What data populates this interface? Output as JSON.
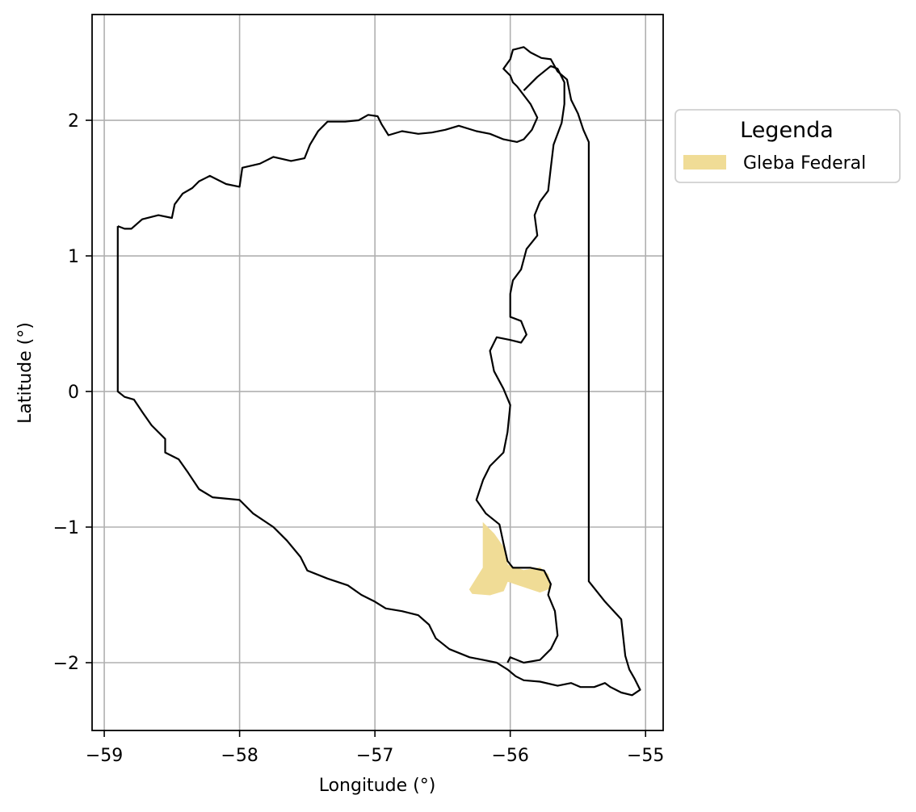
{
  "chart_data": {
    "type": "map",
    "xlabel": "Longitude (°)",
    "ylabel": "Latitude (°)",
    "xlim": [
      -59.09,
      -54.87
    ],
    "ylim": [
      -2.5,
      2.78
    ],
    "xticks": [
      -59,
      -58,
      -57,
      -56,
      -55
    ],
    "xtick_labels": [
      "−59",
      "−58",
      "−57",
      "−56",
      "−55"
    ],
    "yticks": [
      -2,
      -1,
      0,
      1,
      2
    ],
    "ytick_labels": [
      "−2",
      "−1",
      "0",
      "1",
      "2"
    ],
    "grid": true,
    "legend": {
      "title": "Legenda",
      "placement": "outside-upper-right",
      "entries": [
        {
          "label": "Gleba Federal",
          "color": "#f0dc96"
        }
      ]
    },
    "boundaries": [
      {
        "name": "",
        "color": "#000000",
        "coords": [
          [
            -58.9,
            1.22
          ],
          [
            -58.85,
            1.2
          ],
          [
            -58.8,
            1.2
          ],
          [
            -58.72,
            1.27
          ],
          [
            -58.6,
            1.3
          ],
          [
            -58.5,
            1.28
          ],
          [
            -58.48,
            1.38
          ],
          [
            -58.42,
            1.46
          ],
          [
            -58.35,
            1.5
          ],
          [
            -58.3,
            1.55
          ],
          [
            -58.22,
            1.59
          ],
          [
            -58.1,
            1.53
          ],
          [
            -58.0,
            1.51
          ],
          [
            -57.98,
            1.65
          ],
          [
            -57.85,
            1.68
          ],
          [
            -57.75,
            1.73
          ],
          [
            -57.62,
            1.7
          ],
          [
            -57.52,
            1.72
          ],
          [
            -57.48,
            1.82
          ],
          [
            -57.42,
            1.92
          ],
          [
            -57.35,
            1.99
          ],
          [
            -57.22,
            1.99
          ],
          [
            -57.12,
            2.0
          ],
          [
            -57.05,
            2.04
          ],
          [
            -56.98,
            2.03
          ],
          [
            -56.95,
            1.97
          ],
          [
            -56.9,
            1.89
          ],
          [
            -56.8,
            1.92
          ],
          [
            -56.68,
            1.9
          ],
          [
            -56.58,
            1.91
          ],
          [
            -56.48,
            1.93
          ],
          [
            -56.38,
            1.96
          ],
          [
            -56.25,
            1.92
          ],
          [
            -56.15,
            1.9
          ],
          [
            -56.05,
            1.86
          ],
          [
            -55.95,
            1.84
          ],
          [
            -55.9,
            1.86
          ],
          [
            -55.84,
            1.93
          ],
          [
            -55.8,
            2.02
          ],
          [
            -55.85,
            2.12
          ],
          [
            -55.95,
            2.25
          ],
          [
            -55.98,
            2.28
          ],
          [
            -56.0,
            2.33
          ],
          [
            -56.05,
            2.38
          ],
          [
            -56.0,
            2.45
          ],
          [
            -55.98,
            2.52
          ],
          [
            -55.9,
            2.54
          ],
          [
            -55.85,
            2.5
          ],
          [
            -55.77,
            2.46
          ],
          [
            -55.7,
            2.45
          ],
          [
            -55.65,
            2.36
          ],
          [
            -55.58,
            2.3
          ],
          [
            -55.55,
            2.15
          ],
          [
            -55.5,
            2.05
          ],
          [
            -55.46,
            1.93
          ],
          [
            -55.42,
            1.84
          ],
          [
            -55.42,
            1.72
          ],
          [
            -55.42,
            1.55
          ],
          [
            -55.42,
            0.5
          ],
          [
            -55.42,
            -0.5
          ],
          [
            -55.42,
            -1.4
          ],
          [
            -55.3,
            -1.55
          ],
          [
            -55.18,
            -1.68
          ],
          [
            -55.15,
            -1.95
          ],
          [
            -55.12,
            -2.05
          ],
          [
            -55.08,
            -2.12
          ],
          [
            -55.04,
            -2.2
          ],
          [
            -55.1,
            -2.24
          ],
          [
            -55.18,
            -2.22
          ],
          [
            -55.26,
            -2.18
          ],
          [
            -55.3,
            -2.15
          ],
          [
            -55.38,
            -2.18
          ],
          [
            -55.48,
            -2.18
          ],
          [
            -55.55,
            -2.15
          ],
          [
            -55.65,
            -2.17
          ],
          [
            -55.78,
            -2.14
          ],
          [
            -55.9,
            -2.13
          ],
          [
            -55.96,
            -2.1
          ],
          [
            -56.02,
            -2.05
          ],
          [
            -56.1,
            -2.0
          ],
          [
            -56.2,
            -1.98
          ],
          [
            -56.3,
            -1.96
          ],
          [
            -56.45,
            -1.9
          ],
          [
            -56.55,
            -1.82
          ],
          [
            -56.6,
            -1.72
          ],
          [
            -56.68,
            -1.65
          ],
          [
            -56.8,
            -1.62
          ],
          [
            -56.92,
            -1.6
          ],
          [
            -57.0,
            -1.55
          ],
          [
            -57.1,
            -1.5
          ],
          [
            -57.2,
            -1.43
          ],
          [
            -57.35,
            -1.38
          ],
          [
            -57.5,
            -1.32
          ],
          [
            -57.55,
            -1.22
          ],
          [
            -57.65,
            -1.1
          ],
          [
            -57.75,
            -1.0
          ],
          [
            -57.9,
            -0.9
          ],
          [
            -58.0,
            -0.8
          ],
          [
            -58.2,
            -0.78
          ],
          [
            -58.3,
            -0.72
          ],
          [
            -58.38,
            -0.6
          ],
          [
            -58.45,
            -0.5
          ],
          [
            -58.55,
            -0.45
          ],
          [
            -58.55,
            -0.35
          ],
          [
            -58.65,
            -0.25
          ],
          [
            -58.72,
            -0.15
          ],
          [
            -58.78,
            -0.06
          ],
          [
            -58.85,
            -0.04
          ],
          [
            -58.9,
            0.0
          ],
          [
            -58.9,
            1.22
          ]
        ]
      },
      {
        "name": "",
        "color": "#000000",
        "coords": [
          [
            -55.9,
            2.22
          ],
          [
            -55.8,
            2.32
          ],
          [
            -55.7,
            2.4
          ],
          [
            -55.65,
            2.38
          ],
          [
            -55.6,
            2.28
          ],
          [
            -55.6,
            2.12
          ],
          [
            -55.62,
            1.98
          ],
          [
            -55.68,
            1.82
          ],
          [
            -55.7,
            1.65
          ],
          [
            -55.72,
            1.48
          ],
          [
            -55.78,
            1.4
          ],
          [
            -55.82,
            1.3
          ],
          [
            -55.8,
            1.15
          ],
          [
            -55.88,
            1.05
          ],
          [
            -55.92,
            0.9
          ],
          [
            -55.98,
            0.82
          ],
          [
            -56.0,
            0.72
          ],
          [
            -56.0,
            0.55
          ],
          [
            -55.92,
            0.52
          ],
          [
            -55.88,
            0.42
          ],
          [
            -55.92,
            0.36
          ],
          [
            -56.0,
            0.38
          ],
          [
            -56.1,
            0.4
          ],
          [
            -56.15,
            0.3
          ],
          [
            -56.12,
            0.15
          ],
          [
            -56.05,
            0.02
          ],
          [
            -56.0,
            -0.1
          ],
          [
            -56.02,
            -0.3
          ],
          [
            -56.05,
            -0.45
          ],
          [
            -56.15,
            -0.55
          ],
          [
            -56.2,
            -0.65
          ],
          [
            -56.25,
            -0.8
          ],
          [
            -56.18,
            -0.9
          ],
          [
            -56.08,
            -0.98
          ],
          [
            -56.05,
            -1.12
          ],
          [
            -56.02,
            -1.25
          ],
          [
            -55.98,
            -1.3
          ],
          [
            -55.85,
            -1.3
          ],
          [
            -55.75,
            -1.32
          ],
          [
            -55.7,
            -1.42
          ],
          [
            -55.72,
            -1.5
          ],
          [
            -55.67,
            -1.62
          ],
          [
            -55.65,
            -1.8
          ],
          [
            -55.7,
            -1.9
          ],
          [
            -55.78,
            -1.98
          ],
          [
            -55.9,
            -2.0
          ],
          [
            -56.0,
            -1.96
          ],
          [
            -56.02,
            -2.0
          ]
        ]
      }
    ],
    "areas": [
      {
        "name": "Gleba Federal",
        "color": "#f0dc96",
        "coords": [
          [
            -56.2,
            -0.97
          ],
          [
            -56.12,
            -1.05
          ],
          [
            -56.05,
            -1.15
          ],
          [
            -56.02,
            -1.28
          ],
          [
            -55.9,
            -1.32
          ],
          [
            -55.78,
            -1.3
          ],
          [
            -55.72,
            -1.35
          ],
          [
            -55.7,
            -1.45
          ],
          [
            -55.78,
            -1.48
          ],
          [
            -55.9,
            -1.44
          ],
          [
            -56.02,
            -1.4
          ],
          [
            -56.05,
            -1.47
          ],
          [
            -56.15,
            -1.5
          ],
          [
            -56.28,
            -1.49
          ],
          [
            -56.3,
            -1.46
          ],
          [
            -56.25,
            -1.38
          ],
          [
            -56.2,
            -1.3
          ],
          [
            -56.2,
            -1.18
          ],
          [
            -56.2,
            -0.97
          ]
        ]
      }
    ]
  }
}
